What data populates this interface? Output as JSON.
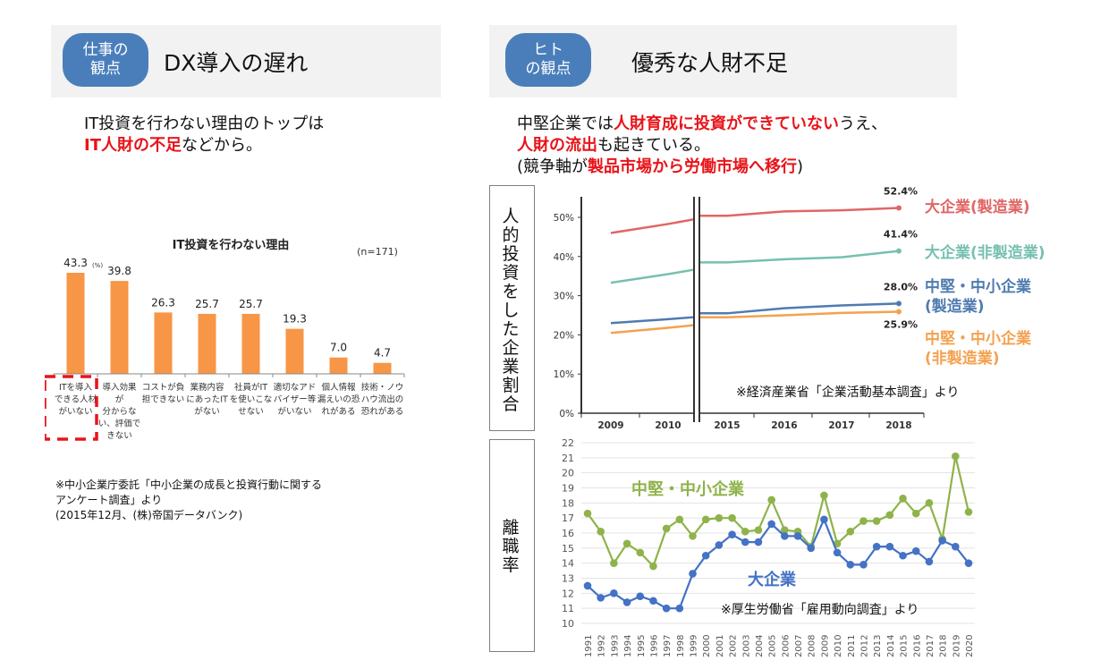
{
  "left_panel": {
    "badge_line1": "仕事の",
    "badge_line2": "観点",
    "title": "DX導入の遅れ",
    "lead_line1": "IT投資を行わない理由のトップは",
    "lead_line2_red": "IT人財の不足",
    "lead_line2_rest": "などから。",
    "source_line1": "※中小企業庁委託「中小企業の成長と投資行動に関する",
    "source_line2": "アンケート調査」より",
    "source_line3": "(2015年12月、(株)帝国データバンク)"
  },
  "right_panel": {
    "badge_line1": "ヒト",
    "badge_line2": "の観点",
    "title": "優秀な人財不足",
    "lead1_a": "中堅企業では",
    "lead1_red": "人財育成に投資ができていない",
    "lead1_b": "うえ、",
    "lead2_red": "人財の流出",
    "lead2_b": "も起きている。",
    "lead3_a": "(競争軸が",
    "lead3_red": "製品市場から労働市場へ移行",
    "lead3_b": ")",
    "upper_frame_label": "人的投資をした企業割合",
    "lower_frame_label": "離職率"
  },
  "colors": {
    "badge": "#4a7ebb",
    "bar": "#f79646",
    "highlight": "#e8141a",
    "large_mfg": "#e06666",
    "large_nonmfg": "#76c0b0",
    "sme_mfg": "#4f7bb0",
    "sme_nonmfg": "#f4a14f",
    "sme_turnover": "#8fb34a",
    "large_turnover": "#4472c4"
  },
  "chart_data": [
    {
      "type": "bar",
      "title": "IT投資を行わない理由",
      "unit_label": "(%)",
      "sample_label": "(n=171)",
      "categories": [
        [
          "ITを導入",
          "できる人材",
          "がいない"
        ],
        [
          "導入効果",
          "が",
          "分からな",
          "い、評価で",
          "きない"
        ],
        [
          "コストが負",
          "担できない"
        ],
        [
          "業務内容",
          "にあったIT",
          "がない"
        ],
        [
          "社員がIT",
          "を使いこな",
          "せない"
        ],
        [
          "適切なアド",
          "バイザー等",
          "がいない"
        ],
        [
          "個人情報",
          "漏えいの恐",
          "れがある"
        ],
        [
          "技術・ノウ",
          "ハウ流出の",
          "恐れがある"
        ]
      ],
      "values": [
        43.3,
        39.8,
        26.3,
        25.7,
        25.7,
        19.3,
        7.0,
        4.7
      ],
      "value_labels": [
        "43.3",
        "39.8",
        "26.3",
        "25.7",
        "25.7",
        "19.3",
        "7.0",
        "4.7"
      ],
      "highlighted_category_index": 0,
      "ylim": [
        0,
        50
      ]
    },
    {
      "type": "line",
      "x": [
        "2009",
        "2010",
        "2015",
        "2016",
        "2017",
        "2018"
      ],
      "axis_break_between": [
        "2010",
        "2015"
      ],
      "yticks": [
        "0%",
        "10%",
        "20%",
        "30%",
        "40%",
        "50%"
      ],
      "ylim": [
        0,
        55
      ],
      "series": [
        {
          "name": "大企業(製造業)",
          "values": [
            46.0,
            48.3,
            50.4,
            51.5,
            51.8,
            52.4
          ],
          "end_label": "52.4%"
        },
        {
          "name": "大企業(非製造業)",
          "values": [
            33.3,
            35.5,
            38.5,
            39.3,
            39.8,
            41.4
          ],
          "end_label": "41.4%"
        },
        {
          "name_line1": "中堅・中小企業",
          "name_line2": "(製造業)",
          "values": [
            23.0,
            24.0,
            25.5,
            26.8,
            27.5,
            28.0
          ],
          "end_label": "28.0%"
        },
        {
          "name_line1": "中堅・中小企業",
          "name_line2": "(非製造業)",
          "values": [
            20.5,
            21.8,
            24.5,
            25.0,
            25.6,
            25.9
          ],
          "end_label": "25.9%"
        }
      ],
      "note": "※経済産業省「企業活動基本調査」より"
    },
    {
      "type": "line",
      "x": [
        "1991",
        "1992",
        "1993",
        "1994",
        "1995",
        "1996",
        "1997",
        "1998",
        "1999",
        "2000",
        "2001",
        "2002",
        "2003",
        "2004",
        "2005",
        "2006",
        "2007",
        "2008",
        "2009",
        "2010",
        "2011",
        "2012",
        "2013",
        "2014",
        "2015",
        "2016",
        "2017",
        "2018",
        "2019",
        "2020"
      ],
      "yticks": [
        "10",
        "11",
        "12",
        "13",
        "14",
        "15",
        "16",
        "17",
        "18",
        "19",
        "20",
        "21",
        "22"
      ],
      "ylim": [
        10,
        22
      ],
      "grid": true,
      "series": [
        {
          "name": "中堅・中小企業",
          "values": [
            17.3,
            16.1,
            14.0,
            15.3,
            14.7,
            13.8,
            16.3,
            16.9,
            15.8,
            16.9,
            17.0,
            17.0,
            16.1,
            16.2,
            18.2,
            16.2,
            16.1,
            15.1,
            18.5,
            15.3,
            16.1,
            16.8,
            16.8,
            17.2,
            18.3,
            17.3,
            18.0,
            15.6,
            21.1,
            17.4
          ]
        },
        {
          "name": "大企業",
          "values": [
            12.5,
            11.7,
            12.0,
            11.4,
            11.8,
            11.5,
            11.0,
            11.0,
            13.3,
            14.5,
            15.2,
            15.9,
            15.4,
            15.4,
            16.6,
            15.8,
            15.8,
            15.0,
            16.9,
            14.7,
            13.9,
            13.9,
            15.1,
            15.1,
            14.5,
            14.8,
            14.1,
            15.5,
            15.1,
            14.0
          ]
        }
      ],
      "note": "※厚生労働省「雇用動向調査」より"
    }
  ]
}
